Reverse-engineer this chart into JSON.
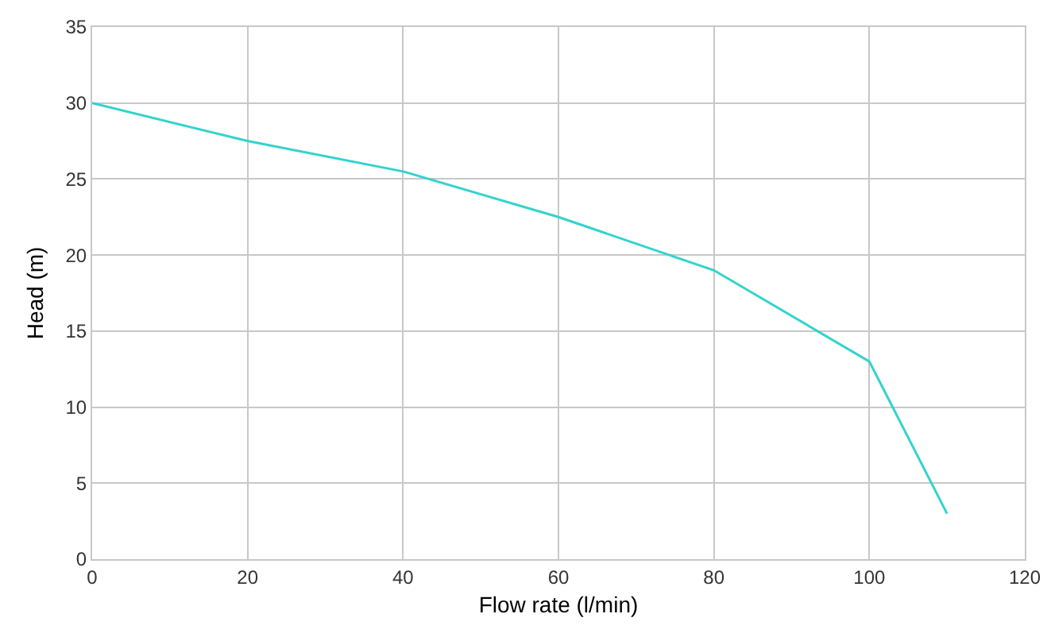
{
  "chart_data": {
    "type": "line",
    "xlabel": "Flow rate (l/min)",
    "ylabel": "Head (m)",
    "x": [
      0,
      20,
      40,
      60,
      80,
      100,
      110
    ],
    "series": [
      {
        "color": "#33d3cc",
        "values": [
          30,
          27.5,
          25.5,
          22.5,
          19,
          13,
          3
        ]
      }
    ],
    "xlim": [
      0,
      120
    ],
    "xticks": [
      0,
      20,
      40,
      60,
      80,
      100,
      120
    ],
    "ylim": [
      0,
      35
    ],
    "yticks": [
      0,
      5,
      10,
      15,
      20,
      25,
      30,
      35
    ],
    "grid": true,
    "marker": "none",
    "line_style": "solid"
  }
}
